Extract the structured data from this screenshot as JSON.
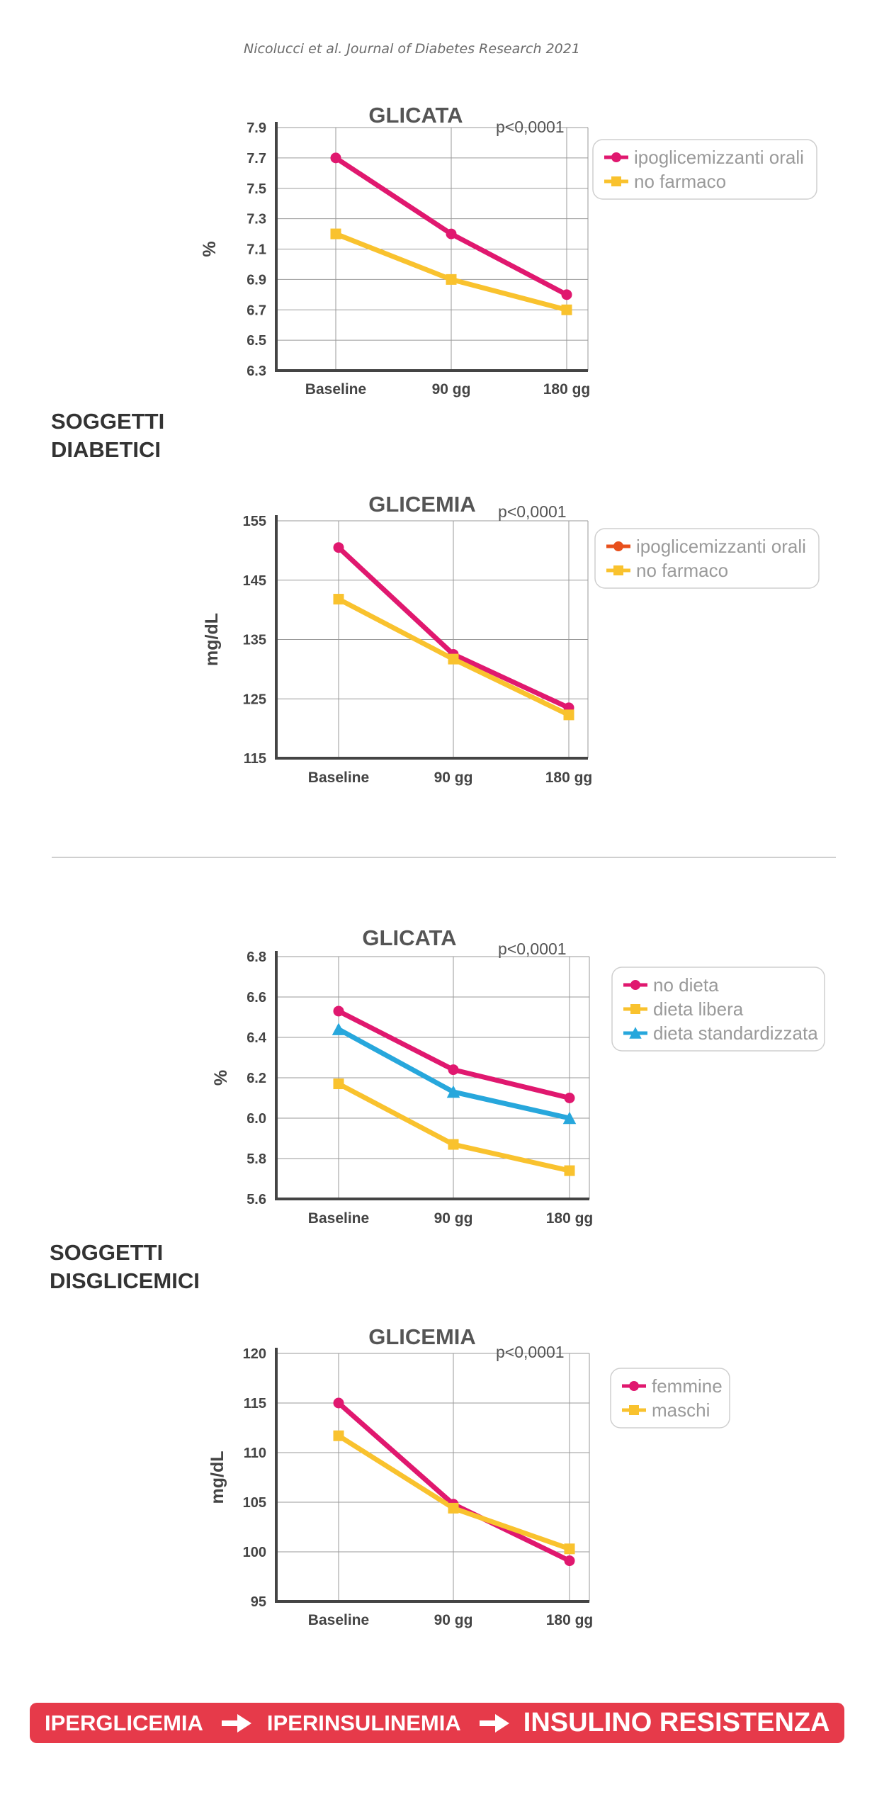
{
  "citation": "Nicolucci et al. Journal of Diabetes Research 2021",
  "sections": [
    {
      "label_lines": [
        "SOGGETTI",
        "DIABETICI"
      ]
    },
    {
      "label_lines": [
        "SOGGETTI",
        "DISGLICEMICI"
      ]
    }
  ],
  "banner": {
    "steps": [
      "IPERGLICEMIA",
      "IPERINSULINEMIA",
      "INSULINO RESISTENZA"
    ],
    "color": "#e63a4a"
  },
  "colors": {
    "pink": "#e0186f",
    "yellow": "#f9c22e",
    "blue": "#27a7dc",
    "orange": "#e8501c",
    "axis": "#444444",
    "grid": "#9a9a9a"
  },
  "chart_data": [
    {
      "type": "line",
      "title": "GLICATA",
      "annotation": "p<0,0001",
      "ylabel": "%",
      "xlabel": "",
      "categories": [
        "Baseline",
        "90 gg",
        "180 gg"
      ],
      "ylim": [
        6.3,
        7.9
      ],
      "yticks": [
        6.3,
        6.5,
        6.7,
        6.9,
        7.1,
        7.3,
        7.5,
        7.7,
        7.9
      ],
      "tick_format": 1,
      "grid": true,
      "legend_position": "top-right",
      "series": [
        {
          "name": "ipoglicemizzanti orali",
          "values": [
            7.7,
            7.2,
            6.8
          ],
          "color": "#e0186f",
          "legend_color": "#e0186f",
          "marker": "circle"
        },
        {
          "name": "no farmaco",
          "values": [
            7.2,
            6.9,
            6.7
          ],
          "color": "#f9c22e",
          "legend_color": "#f9c22e",
          "marker": "square"
        }
      ]
    },
    {
      "type": "line",
      "title": "GLICEMIA",
      "annotation": "p<0,0001",
      "ylabel": "mg/dL",
      "xlabel": "",
      "categories": [
        "Baseline",
        "90 gg",
        "180 gg"
      ],
      "ylim": [
        115,
        155
      ],
      "yticks": [
        115,
        125,
        135,
        145,
        155
      ],
      "tick_format": 0,
      "grid": true,
      "legend_position": "top-right",
      "series": [
        {
          "name": "ipoglicemizzanti orali",
          "values": [
            150.5,
            132.5,
            123.5
          ],
          "color": "#e0186f",
          "legend_color": "#e8501c",
          "marker": "circle"
        },
        {
          "name": "no farmaco",
          "values": [
            141.8,
            131.7,
            122.3
          ],
          "color": "#f9c22e",
          "legend_color": "#f9c22e",
          "marker": "square"
        }
      ]
    },
    {
      "type": "line",
      "title": "GLICATA",
      "annotation": "p<0,0001",
      "ylabel": "%",
      "xlabel": "",
      "categories": [
        "Baseline",
        "90 gg",
        "180 gg"
      ],
      "ylim": [
        5.6,
        6.8
      ],
      "yticks": [
        5.6,
        5.8,
        6.0,
        6.2,
        6.4,
        6.6,
        6.8
      ],
      "tick_format": 1,
      "grid": true,
      "legend_position": "top-right",
      "series": [
        {
          "name": "no dieta",
          "values": [
            6.53,
            6.24,
            6.1
          ],
          "color": "#e0186f",
          "legend_color": "#e0186f",
          "marker": "circle"
        },
        {
          "name": "dieta libera",
          "values": [
            6.17,
            5.87,
            5.74
          ],
          "color": "#f9c22e",
          "legend_color": "#f9c22e",
          "marker": "square"
        },
        {
          "name": "dieta standardizzata",
          "values": [
            6.44,
            6.13,
            6.0
          ],
          "color": "#27a7dc",
          "legend_color": "#27a7dc",
          "marker": "triangle"
        }
      ]
    },
    {
      "type": "line",
      "title": "GLICEMIA",
      "annotation": "p<0,0001",
      "ylabel": "mg/dL",
      "xlabel": "",
      "categories": [
        "Baseline",
        "90 gg",
        "180 gg"
      ],
      "ylim": [
        95,
        120
      ],
      "yticks": [
        95,
        100,
        105,
        110,
        115,
        120
      ],
      "tick_format": 0,
      "grid": true,
      "legend_position": "top-right",
      "series": [
        {
          "name": "femmine",
          "values": [
            115,
            104.8,
            99.1
          ],
          "color": "#e0186f",
          "legend_color": "#e0186f",
          "marker": "circle"
        },
        {
          "name": "maschi",
          "values": [
            111.7,
            104.4,
            100.3
          ],
          "color": "#f9c22e",
          "legend_color": "#f9c22e",
          "marker": "square"
        }
      ]
    }
  ]
}
